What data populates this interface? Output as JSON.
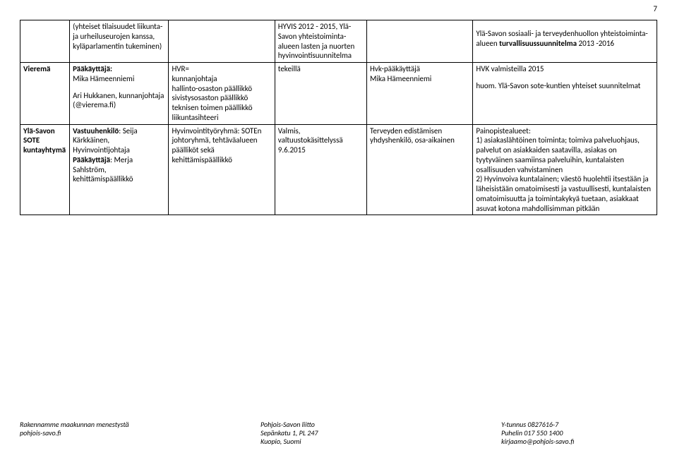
{
  "page_number": "7",
  "row1": {
    "col2": "(yhteiset tilaisuudet liikunta- ja urheiluseurojen kanssa, kyläparlamentin tukeminen)",
    "col4": "HYVIS 2012 - 2015, Ylä-Savon yhteistoiminta-alueen lasten ja nuorten hyvinvointisuunnitelma",
    "col6": "Ylä-Savon sosiaali- ja terveydenhuollon yhteistoiminta-alueen turvallisuussuunnitelma 2013 -2016"
  },
  "row2": {
    "col1": "Vieremä",
    "col2_label1": "Pääkäyttäjä:",
    "col2_name1": "Mika Hämeenniemi",
    "col2_name2": "Ari Hukkanen, kunnanjohtaja (@vierema.fi)",
    "col3_a": "HVR=",
    "col3_b": "kunnanjohtaja",
    "col3_c": "hallinto-osaston päällikkö",
    "col3_d": "sivistysosaston päällikkö",
    "col3_e": "teknisen toimen päällikkö",
    "col3_f": "liikuntasihteeri",
    "col4": "tekeillä",
    "col5_a": "Hvk-pääkäyttäjä",
    "col5_b": "Mika Hämeenniemi",
    "col6_a": "HVK valmisteilla 2015",
    "col6_b": "huom. Ylä-Savon sote-kuntien yhteiset suunnitelmat"
  },
  "row3": {
    "col1": "Ylä-Savon SOTE kuntayhtymä",
    "col2_label1": "Vastuuhenkilö",
    "col2_rest1": ": Seija Kärkkäinen, Hyvinvointijohtaja",
    "col2_label2": "Pääkäyttäjä",
    "col2_rest2": ": Merja Sahlström, kehittämispäällikkö",
    "col3": "Hyvinvointityöryhmä: SOTEn johtoryhmä, tehtäväalueen päälliköt sekä kehittämispäällikkö",
    "col4": "Valmis, valtuustokäsittelyssä 9.6.2015",
    "col5": "Terveyden edistämisen yhdyshenkilö, osa-aikainen",
    "col6_a": "Painopistealueet:",
    "col6_b": "1) asiakaslähtöinen toiminta; toimiva palveluohjaus, palvelut on asiakkaiden saatavilla, asiakas on tyytyväinen saamiinsa palveluihin, kuntalaisten osallisuuden vahvistaminen",
    "col6_c": "2) Hyvinvoiva kuntalainen; väestö huolehtii itsestään ja läheisistään omatoimisesti ja vastuullisesti, kuntalaisten omatoimisuutta ja toimintakykyä tuetaan, asiakkaat asuvat kotona mahdollisimman pitkään"
  },
  "footer": {
    "left_a": "Rakennamme maakunnan menestystä",
    "left_b": "pohjois-savo.fi",
    "mid_a": "Pohjois-Savon liitto",
    "mid_b": "Sepänkatu 1, PL 247",
    "mid_c": "Kuopio, Suomi",
    "right_a": "Y-tunnus 0827616-7",
    "right_b": "Puhelin 017 550 1400",
    "right_c": "kirjaamo@pohjois-savo.fi"
  }
}
